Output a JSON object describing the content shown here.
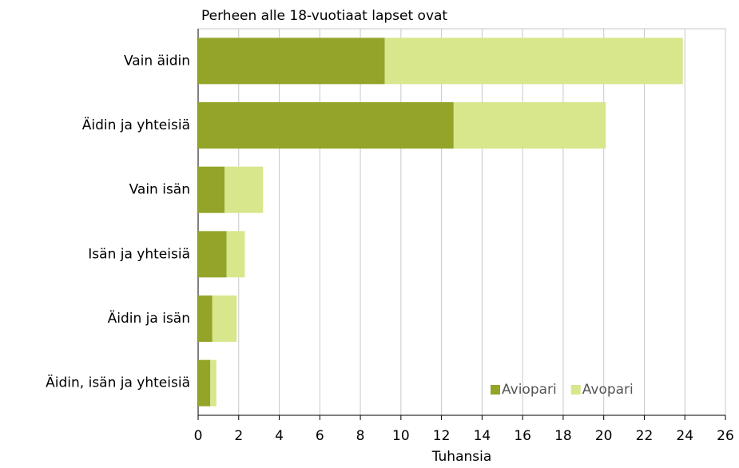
{
  "chart_data": {
    "type": "bar",
    "orientation": "horizontal",
    "stacked": true,
    "title": "Perheen alle 18-vuotiaat lapset ovat",
    "x_label": "Tuhansia",
    "categories": [
      "Vain äidin",
      "Äidin ja yhteisiä",
      "Vain isän",
      "Isän ja yhteisiä",
      "Äidin ja isän",
      "Äidin, isän ja yhteisiä"
    ],
    "series": [
      {
        "name": "Aviopari",
        "color": "#94a428",
        "values": [
          9.2,
          12.6,
          1.3,
          1.4,
          0.7,
          0.6
        ]
      },
      {
        "name": "Avopari",
        "color": "#d8e68c",
        "values": [
          14.7,
          7.5,
          1.9,
          0.9,
          1.2,
          0.3
        ]
      }
    ],
    "xlim": [
      0,
      26
    ],
    "xticks": [
      0,
      2,
      4,
      6,
      8,
      10,
      12,
      14,
      16,
      18,
      20,
      22,
      24,
      26
    ],
    "grid": true,
    "legend": "lower right"
  }
}
